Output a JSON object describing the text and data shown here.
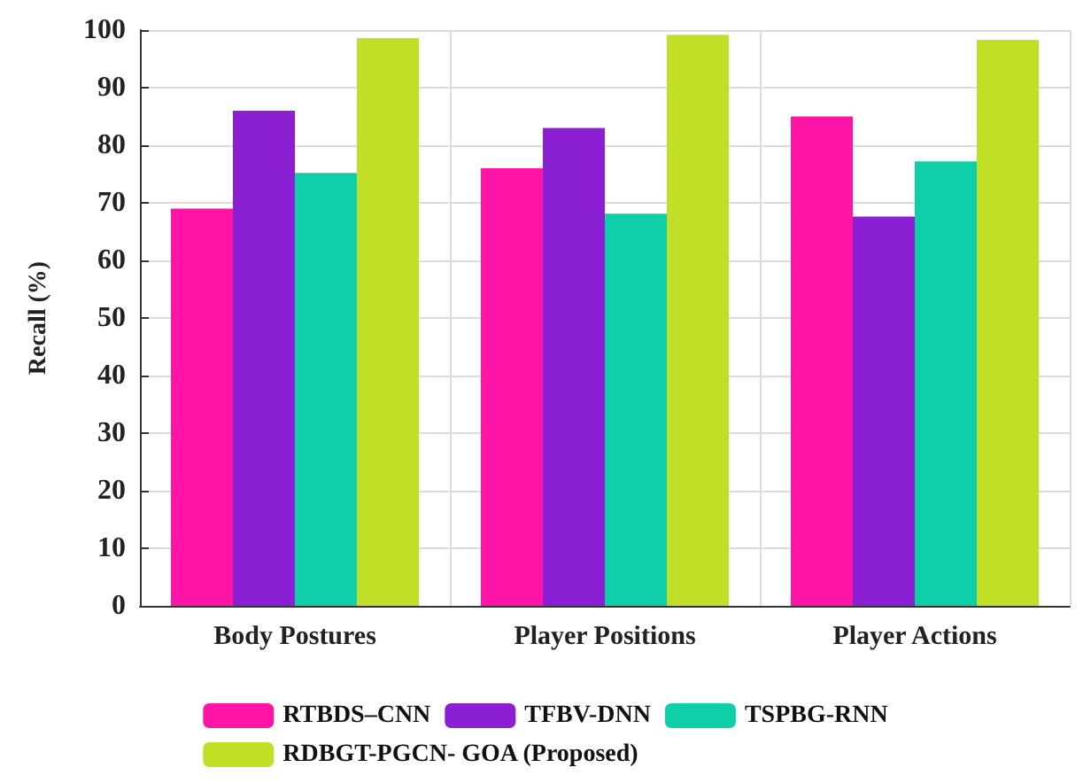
{
  "chart_data": {
    "type": "bar",
    "ylabel": "Recall (%)",
    "categories": [
      "Body Postures",
      "Player Positions",
      "Player Actions"
    ],
    "series": [
      {
        "name": "RTBDS–CNN",
        "color": "#ff14a5",
        "values": [
          69,
          76,
          85
        ]
      },
      {
        "name": "TFBV-DNN",
        "color": "#8a1fd3",
        "values": [
          86,
          83,
          67.6
        ]
      },
      {
        "name": "TSPBG-RNN",
        "color": "#0ecfa8",
        "values": [
          75.2,
          68.1,
          77.2
        ]
      },
      {
        "name": "RDBGT-PGCN- GOA (Proposed)",
        "color": "#c2df28",
        "values": [
          98.6,
          99.2,
          98.3
        ]
      }
    ],
    "ylim": [
      0,
      100
    ],
    "yticks": [
      0,
      10,
      20,
      30,
      40,
      50,
      60,
      70,
      80,
      90,
      100
    ],
    "grid": true,
    "legend": "bottom"
  }
}
